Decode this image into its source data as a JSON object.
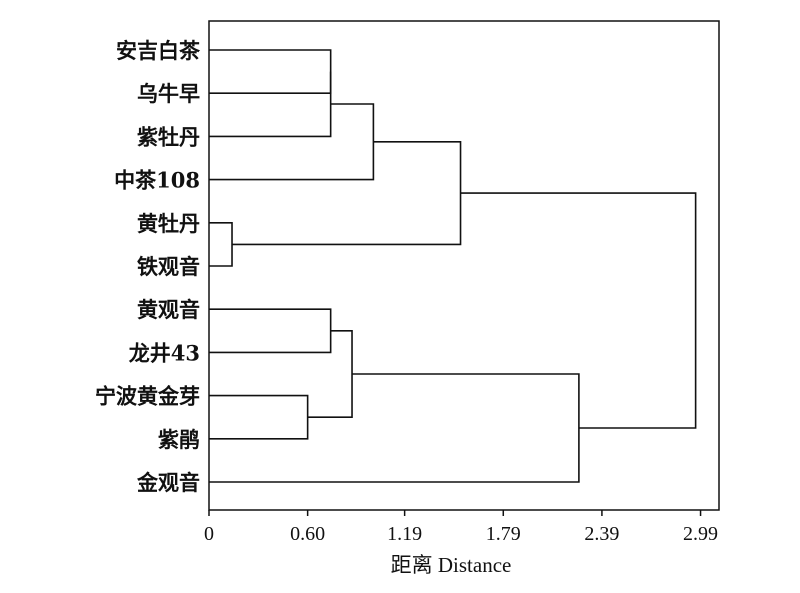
{
  "chart_data": {
    "type": "dendrogram",
    "xlabel": "距离 Distance",
    "xlim": [
      0,
      3.1
    ],
    "xticks": [
      0,
      0.6,
      1.19,
      1.79,
      2.39,
      2.99
    ],
    "xtick_labels": [
      "0",
      "0.60",
      "1.19",
      "1.79",
      "2.39",
      "2.99"
    ],
    "leaves": [
      "安吉白茶",
      "乌牛早",
      "紫牡丹",
      "中茶108",
      "黄牡丹",
      "铁观音",
      "黄观音",
      "龙井43",
      "宁波黄金芽",
      "紫鹃",
      "金观音"
    ],
    "merges": [
      {
        "left": "L0",
        "right": "L1",
        "distance": 0.74,
        "id": "C0"
      },
      {
        "left": "C0",
        "right": "L2",
        "distance": 0.74,
        "id": "C1"
      },
      {
        "left": "C1",
        "right": "L3",
        "distance": 1.0,
        "id": "C2"
      },
      {
        "left": "L4",
        "right": "L5",
        "distance": 0.14,
        "id": "C3"
      },
      {
        "left": "C2",
        "right": "C3",
        "distance": 1.53,
        "id": "C4"
      },
      {
        "left": "L6",
        "right": "L7",
        "distance": 0.74,
        "id": "C5"
      },
      {
        "left": "L8",
        "right": "L9",
        "distance": 0.6,
        "id": "C6"
      },
      {
        "left": "C5",
        "right": "C6",
        "distance": 0.87,
        "id": "C7"
      },
      {
        "left": "C7",
        "right": "L10",
        "distance": 2.25,
        "id": "C8"
      },
      {
        "left": "C4",
        "right": "C8",
        "distance": 2.96,
        "id": "C9"
      }
    ]
  }
}
